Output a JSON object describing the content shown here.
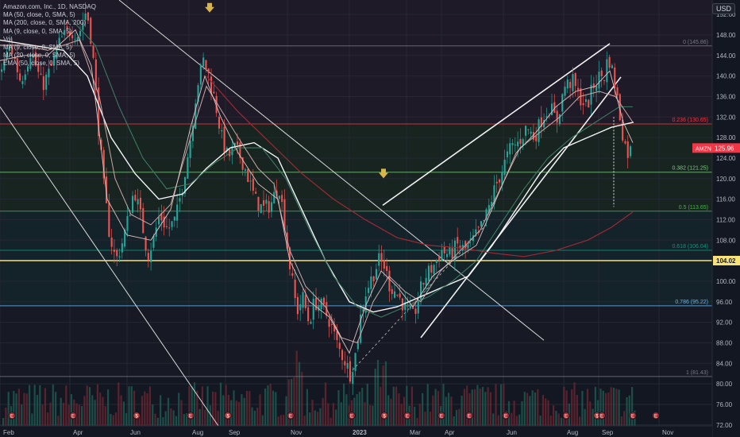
{
  "chart_data": {
    "type": "candlestick",
    "symbol": "AMZN",
    "title": "Amazon.com, Inc., 1D, NASDAQ",
    "currency": "USD",
    "last_price": "125.96",
    "grid": true,
    "legend_position": "top-left",
    "x_labels": [
      "Feb",
      "Apr",
      "Jun",
      "Aug",
      "Sep",
      "Nov",
      "2023",
      "Mar",
      "Apr",
      "Jun",
      "Aug",
      "Sep",
      "Nov"
    ],
    "y_ticks": [
      152,
      148,
      144,
      140,
      136,
      132,
      128,
      124,
      120,
      116,
      112,
      108,
      104,
      100,
      96,
      92,
      88,
      84,
      80,
      76,
      72
    ],
    "y_tick_labels": [
      "152.00",
      "148.00",
      "144.00",
      "140.00",
      "136.00",
      "132.00",
      "128.00",
      "124.00",
      "120.00",
      "116.00",
      "112.00",
      "108.00",
      "104.00",
      "100.00",
      "96.00",
      "92.00",
      "88.00",
      "84.00",
      "80.00",
      "76.00",
      "72.00"
    ],
    "ylim": [
      71.5,
      154.5
    ],
    "indicators": [
      "MA (50, close, 0, SMA, 5)",
      "MA (200, close, 0, SMA, 200)",
      "MA (9, close, 0, SMA, 5)",
      "Vol",
      "MA (9, close, 0, SMA, 5)",
      "MA (20, close, 0, SMA, 5)",
      "EMA (50, close, 0, SMA, 5)"
    ],
    "horizontal_price_label": "104.02",
    "fib_levels": [
      {
        "label": "0 (145.86)",
        "price": 145.86,
        "color": "#787b86"
      },
      {
        "label": "0.236 (130.65)",
        "price": 130.65,
        "color": "#f23645"
      },
      {
        "label": "0.382 (121.25)",
        "price": 121.25,
        "color": "#81c784"
      },
      {
        "label": "0.5 (113.65)",
        "price": 113.65,
        "color": "#4caf50"
      },
      {
        "label": "0.618 (106.04)",
        "price": 106.04,
        "color": "#089981"
      },
      {
        "label": "0.786 (95.22)",
        "price": 95.22,
        "color": "#64b5f6"
      },
      {
        "label": "1 (81.43)",
        "price": 81.43,
        "color": "#787b86"
      }
    ],
    "price_path": [
      [
        0,
        141
      ],
      [
        12,
        146
      ],
      [
        25,
        139
      ],
      [
        38,
        145
      ],
      [
        52,
        138
      ],
      [
        62,
        141
      ],
      [
        75,
        147
      ],
      [
        88,
        149
      ],
      [
        98,
        148
      ],
      [
        108,
        153
      ],
      [
        115,
        146
      ],
      [
        123,
        130
      ],
      [
        130,
        118
      ],
      [
        137,
        109
      ],
      [
        145,
        104
      ],
      [
        152,
        107
      ],
      [
        160,
        112
      ],
      [
        168,
        118
      ],
      [
        177,
        112
      ],
      [
        185,
        105
      ],
      [
        192,
        108
      ],
      [
        200,
        113
      ],
      [
        210,
        110
      ],
      [
        220,
        112
      ],
      [
        228,
        118
      ],
      [
        238,
        127
      ],
      [
        247,
        138
      ],
      [
        255,
        143
      ],
      [
        262,
        140
      ],
      [
        270,
        135
      ],
      [
        278,
        128
      ],
      [
        286,
        124
      ],
      [
        294,
        126
      ],
      [
        303,
        124
      ],
      [
        312,
        120
      ],
      [
        320,
        116
      ],
      [
        330,
        114
      ],
      [
        340,
        115
      ],
      [
        350,
        119
      ],
      [
        357,
        112
      ],
      [
        362,
        105
      ],
      [
        367,
        100
      ],
      [
        373,
        94
      ],
      [
        380,
        97
      ],
      [
        388,
        92
      ],
      [
        395,
        96
      ],
      [
        405,
        95
      ],
      [
        415,
        92
      ],
      [
        425,
        87
      ],
      [
        432,
        85
      ],
      [
        440,
        82
      ],
      [
        447,
        86
      ],
      [
        453,
        93
      ],
      [
        460,
        98
      ],
      [
        468,
        101
      ],
      [
        476,
        104
      ],
      [
        483,
        103
      ],
      [
        490,
        99
      ],
      [
        497,
        98
      ],
      [
        505,
        96
      ],
      [
        512,
        94
      ],
      [
        520,
        93
      ],
      [
        528,
        98
      ],
      [
        535,
        101
      ],
      [
        545,
        103
      ],
      [
        555,
        106
      ],
      [
        565,
        105
      ],
      [
        575,
        107
      ],
      [
        585,
        106
      ],
      [
        595,
        108
      ],
      [
        603,
        110
      ],
      [
        612,
        113
      ],
      [
        622,
        118
      ],
      [
        632,
        122
      ],
      [
        642,
        126
      ],
      [
        652,
        127
      ],
      [
        662,
        130
      ],
      [
        672,
        128
      ],
      [
        682,
        132
      ],
      [
        692,
        134
      ],
      [
        700,
        131
      ],
      [
        710,
        138
      ],
      [
        720,
        139
      ],
      [
        728,
        136
      ],
      [
        738,
        134
      ],
      [
        746,
        138
      ],
      [
        754,
        140
      ],
      [
        760,
        140
      ],
      [
        765,
        144
      ],
      [
        770,
        141
      ],
      [
        775,
        137
      ],
      [
        780,
        132
      ],
      [
        785,
        127
      ],
      [
        790,
        125
      ],
      [
        796,
        126
      ]
    ],
    "moving_averages": [
      {
        "name": "EMA (50, close, 0, SMA, 5)",
        "color": "#f5f5f5",
        "width": 1.4,
        "points": [
          [
            0,
            147
          ],
          [
            40,
            146
          ],
          [
            80,
            145
          ],
          [
            110,
            140
          ],
          [
            140,
            128
          ],
          [
            170,
            121
          ],
          [
            200,
            116
          ],
          [
            230,
            117
          ],
          [
            260,
            122
          ],
          [
            290,
            126
          ],
          [
            320,
            127
          ],
          [
            350,
            124
          ],
          [
            380,
            114
          ],
          [
            410,
            104
          ],
          [
            440,
            96
          ],
          [
            470,
            94
          ],
          [
            500,
            95
          ],
          [
            530,
            97
          ],
          [
            560,
            99
          ],
          [
            590,
            101
          ],
          [
            620,
            107
          ],
          [
            650,
            114
          ],
          [
            680,
            121
          ],
          [
            710,
            126
          ],
          [
            740,
            128
          ],
          [
            770,
            130
          ],
          [
            798,
            131
          ]
        ]
      },
      {
        "name": "MA (200, close, 0, SMA, 200)",
        "color": "#9b2a33",
        "width": 1.2,
        "points": [
          [
            260,
            140
          ],
          [
            300,
            133
          ],
          [
            340,
            127
          ],
          [
            380,
            121
          ],
          [
            420,
            116
          ],
          [
            460,
            112
          ],
          [
            500,
            108.5
          ],
          [
            540,
            107
          ],
          [
            580,
            106.5
          ],
          [
            620,
            105.5
          ],
          [
            660,
            104.8
          ],
          [
            700,
            106
          ],
          [
            740,
            108
          ],
          [
            770,
            110.5
          ],
          [
            797,
            113.5
          ]
        ]
      },
      {
        "name": "MA (50, close, 0, SMA, 5)",
        "color": "#3d7a62",
        "width": 1.1,
        "points": [
          [
            90,
            151
          ],
          [
            120,
            146
          ],
          [
            150,
            134
          ],
          [
            180,
            124
          ],
          [
            210,
            118
          ],
          [
            240,
            119
          ],
          [
            270,
            123
          ],
          [
            300,
            126
          ],
          [
            330,
            126
          ],
          [
            360,
            120
          ],
          [
            390,
            110
          ],
          [
            420,
            101
          ],
          [
            450,
            95
          ],
          [
            480,
            93
          ],
          [
            510,
            95
          ],
          [
            540,
            97
          ],
          [
            570,
            100
          ],
          [
            600,
            104
          ],
          [
            630,
            111
          ],
          [
            660,
            118
          ],
          [
            690,
            124
          ],
          [
            720,
            128
          ],
          [
            750,
            131
          ],
          [
            780,
            134
          ],
          [
            797,
            134
          ]
        ]
      },
      {
        "name": "MA (20, close, 0, SMA, 5)",
        "color": "#c9a7a7",
        "width": 1,
        "points": [
          [
            0,
            146
          ],
          [
            30,
            146
          ],
          [
            60,
            145
          ],
          [
            100,
            147
          ],
          [
            125,
            136
          ],
          [
            145,
            120
          ],
          [
            165,
            113
          ],
          [
            190,
            111
          ],
          [
            215,
            115
          ],
          [
            240,
            128
          ],
          [
            260,
            138
          ],
          [
            280,
            133
          ],
          [
            300,
            128
          ],
          [
            325,
            122
          ],
          [
            345,
            119
          ],
          [
            365,
            106
          ],
          [
            385,
            99
          ],
          [
            410,
            95
          ],
          [
            430,
            89
          ],
          [
            450,
            88
          ],
          [
            470,
            96
          ],
          [
            490,
            101
          ],
          [
            510,
            98
          ],
          [
            530,
            96
          ],
          [
            555,
            102
          ],
          [
            580,
            106
          ],
          [
            605,
            110
          ],
          [
            630,
            118
          ],
          [
            655,
            126
          ],
          [
            680,
            129
          ],
          [
            705,
            132
          ],
          [
            730,
            136
          ],
          [
            755,
            137
          ],
          [
            775,
            136
          ],
          [
            797,
            131
          ]
        ]
      },
      {
        "name": "MA (9, close, 0, SMA, 5)",
        "color": "#e0c2c2",
        "width": 0.9,
        "points": [
          [
            0,
            143
          ],
          [
            30,
            144
          ],
          [
            60,
            144
          ],
          [
            95,
            149
          ],
          [
            115,
            142
          ],
          [
            135,
            116
          ],
          [
            160,
            109
          ],
          [
            190,
            108
          ],
          [
            215,
            114
          ],
          [
            240,
            130
          ],
          [
            258,
            140
          ],
          [
            278,
            132
          ],
          [
            300,
            125
          ],
          [
            325,
            119
          ],
          [
            350,
            116
          ],
          [
            365,
            104
          ],
          [
            390,
            96
          ],
          [
            415,
            93
          ],
          [
            440,
            86
          ],
          [
            460,
            95
          ],
          [
            480,
            102
          ],
          [
            500,
            99
          ],
          [
            520,
            95
          ],
          [
            545,
            101
          ],
          [
            570,
            104
          ],
          [
            600,
            107
          ],
          [
            625,
            116
          ],
          [
            650,
            125
          ],
          [
            675,
            129
          ],
          [
            700,
            134
          ],
          [
            725,
            137
          ],
          [
            750,
            138
          ],
          [
            768,
            141
          ],
          [
            785,
            131
          ],
          [
            797,
            127
          ]
        ]
      }
    ],
    "event_markers": [
      "E",
      "E",
      "$",
      "E",
      "$",
      "E",
      "E",
      "$",
      "E",
      "E",
      "E",
      "E",
      "E",
      "$",
      "E",
      "E",
      "E"
    ]
  }
}
